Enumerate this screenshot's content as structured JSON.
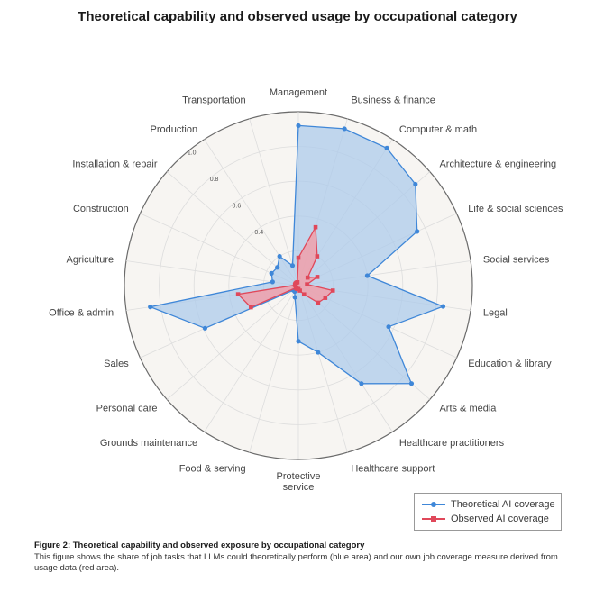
{
  "colors": {
    "theoretical": "#3f87d8",
    "theoretical_fill": "#aecbeb",
    "observed": "#e0485a",
    "observed_fill": "#f0a0aa",
    "background_disk": "#f7f5f2",
    "grid": "#dddddd",
    "outer_ring": "#6b6b6b"
  },
  "chart_data": {
    "type": "radar",
    "title": "Theoretical capability and observed usage by occupational category",
    "categories": [
      "Management",
      "Business & finance",
      "Computer & math",
      "Architecture & engineering",
      "Life & social sciences",
      "Social services",
      "Legal",
      "Education & library",
      "Arts & media",
      "Healthcare practitioners",
      "Healthcare support",
      "Protective service",
      "Food & serving",
      "Grounds maintenance",
      "Personal care",
      "Sales",
      "Office & admin",
      "Agriculture",
      "Construction",
      "Installation & repair",
      "Production",
      "Transportation"
    ],
    "category_display": [
      "Management",
      "Business & finance",
      "Computer & math",
      "Architecture & engineering",
      "Life & social sciences",
      "Social services",
      "Legal",
      "Education & library",
      "Arts & media",
      "Healthcare practitioners",
      "Healthcare support",
      "Protective\nservice",
      "Food & serving",
      "Grounds maintenance",
      "Personal care",
      "Sales",
      "Office & admin",
      "Agriculture",
      "Construction",
      "Installation & repair",
      "Production",
      "Transportation"
    ],
    "series": [
      {
        "name": "Theoretical AI coverage",
        "values": [
          0.92,
          0.94,
          0.94,
          0.89,
          0.75,
          0.4,
          0.84,
          0.57,
          0.86,
          0.67,
          0.4,
          0.32,
          0.07,
          0.04,
          0.04,
          0.59,
          0.86,
          0.15,
          0.17,
          0.16,
          0.2,
          0.12
        ]
      },
      {
        "name": "Observed AI coverage",
        "values": [
          0.16,
          0.35,
          0.2,
          0.07,
          0.12,
          0.05,
          0.2,
          0.17,
          0.15,
          0.06,
          0.03,
          0.02,
          0.02,
          0.02,
          0.02,
          0.3,
          0.35,
          0.02,
          0.02,
          0.02,
          0.02,
          0.02
        ]
      }
    ],
    "radial_ticks": [
      "0.4",
      "0.6",
      "0.8",
      "1.0"
    ],
    "rmax": 1.0,
    "legend_position": "bottom-right"
  },
  "legend": {
    "theoretical_label": "Theoretical AI coverage",
    "observed_label": "Observed AI coverage"
  },
  "caption": {
    "title": "Figure 2: Theoretical capability and observed exposure by occupational category",
    "body": "This figure shows the share of job tasks that LLMs could theoretically perform (blue area) and our own job coverage measure derived from usage data (red area)."
  }
}
